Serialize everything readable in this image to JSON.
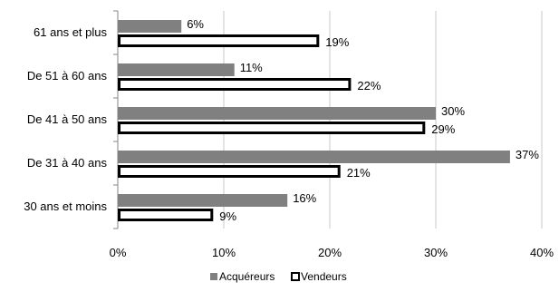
{
  "chart_data": {
    "type": "bar",
    "orientation": "horizontal",
    "categories": [
      "61 ans et plus",
      "De 51 à 60 ans",
      "De 41 à 50 ans",
      "De 31 à 40 ans",
      "30 ans et moins"
    ],
    "series": [
      {
        "name": "Acquéreurs",
        "values": [
          6,
          11,
          30,
          37,
          16
        ],
        "labels": [
          "6%",
          "11%",
          "30%",
          "37%",
          "16%"
        ],
        "color": "#808080",
        "style": "filled"
      },
      {
        "name": "Vendeurs",
        "values": [
          19,
          22,
          29,
          21,
          9
        ],
        "labels": [
          "19%",
          "22%",
          "29%",
          "21%",
          "9%"
        ],
        "color": "#000000",
        "style": "outlined"
      }
    ],
    "x_ticks": [
      "0%",
      "10%",
      "20%",
      "30%",
      "40%"
    ],
    "xlim": [
      0,
      40
    ],
    "grid": "vertical",
    "legend": "bottom-center"
  }
}
